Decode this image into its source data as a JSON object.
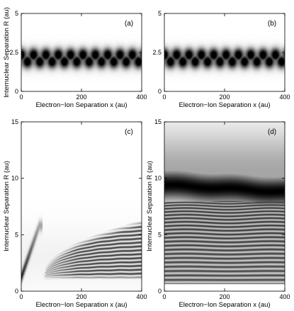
{
  "chart_data": [
    {
      "type": "heatmap",
      "panel_label": "(a)",
      "xlabel": "Electron−Ion Separation x (au)",
      "ylabel": "Internuclear Separation R (au)",
      "xlim": [
        0,
        400
      ],
      "ylim": [
        0,
        5
      ],
      "xticks": [
        0,
        200,
        400
      ],
      "xtick_labels": [
        "0",
        "200",
        "400"
      ],
      "yticks": [
        0,
        2.5,
        5
      ],
      "ytick_labels": [
        "0",
        "2.5",
        "5"
      ],
      "colormap": "white-to-black",
      "features": [
        {
          "kind": "band",
          "R_center": 2.35,
          "R_width": 0.28,
          "x_range": [
            0,
            400
          ],
          "period_x": 41,
          "phase_x": 0,
          "intensity": 1.0
        },
        {
          "kind": "band",
          "R_center": 1.9,
          "R_width": 0.28,
          "x_range": [
            0,
            400
          ],
          "period_x": 41,
          "phase_x": 20.5,
          "intensity": 1.0
        }
      ]
    },
    {
      "type": "heatmap",
      "panel_label": "(b)",
      "xlabel": "Electron−Ion Separation x (au)",
      "ylabel": "",
      "xlim": [
        0,
        400
      ],
      "ylim": [
        0,
        5
      ],
      "xticks": [
        0,
        200,
        400
      ],
      "xtick_labels": [
        "0",
        "200",
        "400"
      ],
      "yticks": [
        0,
        2.5,
        5
      ],
      "ytick_labels": [
        "0",
        "2.5",
        "5"
      ],
      "colormap": "white-to-black",
      "features": [
        {
          "kind": "band",
          "R_center": 2.35,
          "R_width": 0.28,
          "x_range": [
            0,
            400
          ],
          "period_x": 41,
          "phase_x": 0,
          "intensity": 1.0
        },
        {
          "kind": "band",
          "R_center": 1.9,
          "R_width": 0.28,
          "x_range": [
            0,
            400
          ],
          "period_x": 41,
          "phase_x": 20.5,
          "intensity": 1.0
        }
      ]
    },
    {
      "type": "heatmap",
      "panel_label": "(c)",
      "xlabel": "Electron−Ion Separation x (au)",
      "ylabel": "Internuclear Separation R (au)",
      "xlim": [
        0,
        400
      ],
      "ylim": [
        0,
        15
      ],
      "xticks": [
        0,
        200,
        400
      ],
      "xtick_labels": [
        "0",
        "200",
        "400"
      ],
      "yticks": [
        0,
        5,
        10,
        15
      ],
      "ytick_labels": [
        "0",
        "5",
        "10",
        "15"
      ],
      "colormap": "white-to-black",
      "features": [
        {
          "kind": "streak",
          "from": [
            0,
            1.2
          ],
          "to": [
            60,
            5.8
          ],
          "width": 0.35,
          "intensity": 0.85
        },
        {
          "kind": "interference_fan",
          "x_start": 75,
          "x_end": 400,
          "R_min": 1.2,
          "R_max_at_end": 5.8,
          "fringe_count": 14,
          "intensity": 0.75
        }
      ]
    },
    {
      "type": "heatmap",
      "panel_label": "(d)",
      "xlabel": "Electron−Ion Separation x (au)",
      "ylabel": "Internuclear Separation R (au)",
      "xlim": [
        0,
        400
      ],
      "ylim": [
        0,
        15
      ],
      "xticks": [
        0,
        200,
        400
      ],
      "xtick_labels": [
        "0",
        "200",
        "400"
      ],
      "yticks": [
        0,
        5,
        10,
        15
      ],
      "ytick_labels": [
        "0",
        "5",
        "10",
        "15"
      ],
      "colormap": "white-to-black",
      "features": [
        {
          "kind": "broad_band",
          "R_center": 9.1,
          "R_width": 0.9,
          "intensity": 1.0
        },
        {
          "kind": "halo",
          "R_center": 10.5,
          "R_width": 2.6,
          "intensity": 0.35
        },
        {
          "kind": "striations",
          "R_top": 8.0,
          "R_bottom": 0.6,
          "count": 22,
          "intensity": 0.85
        }
      ]
    }
  ]
}
